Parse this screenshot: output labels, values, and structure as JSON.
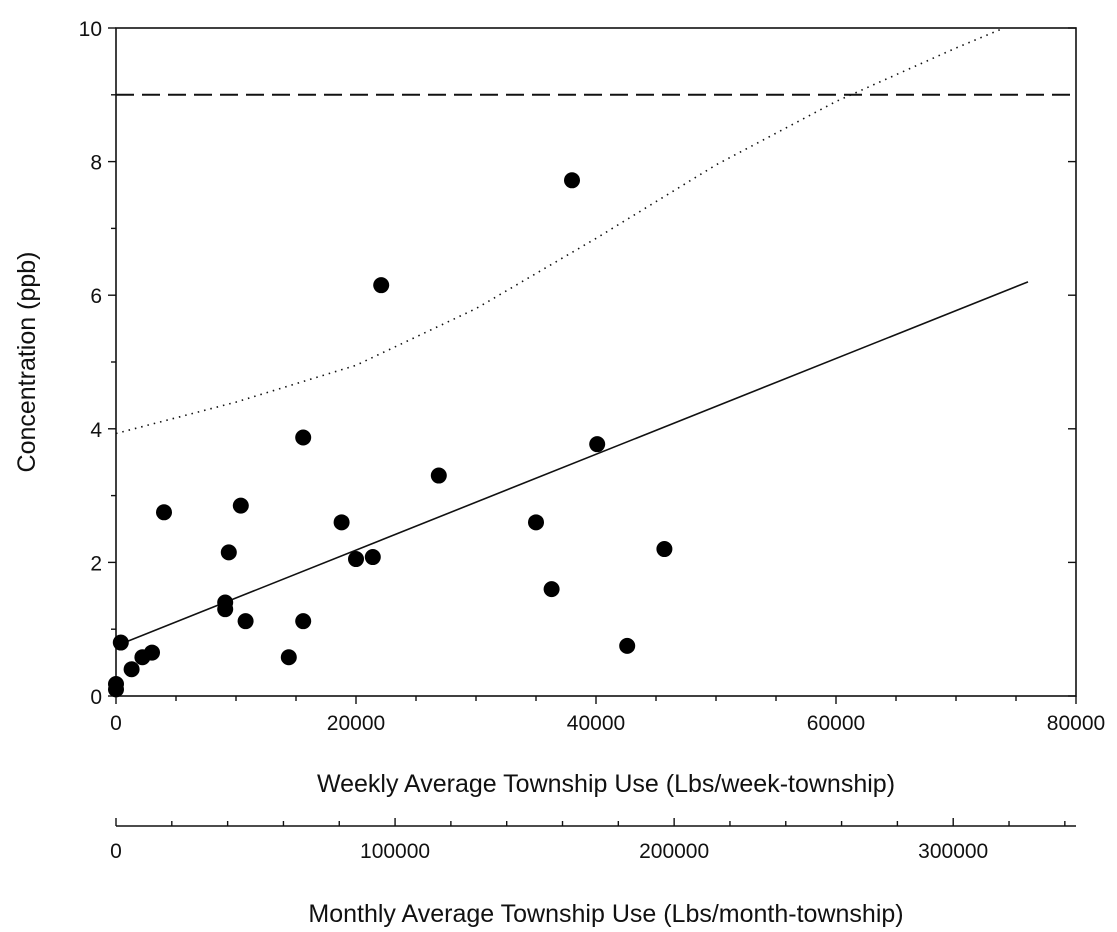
{
  "chart_data": {
    "type": "scatter",
    "title": "",
    "xlabel": "Weekly Average Township Use (Lbs/week-township)",
    "ylabel": "Concentration (ppb)",
    "xlim": [
      0,
      80000
    ],
    "ylim": [
      0,
      10
    ],
    "x_ticks": [
      0,
      20000,
      40000,
      60000,
      80000
    ],
    "x_tick_labels": [
      "0",
      "20000",
      "40000",
      "60000",
      "80000"
    ],
    "y_ticks": [
      0,
      2,
      4,
      6,
      8,
      10
    ],
    "y_tick_labels": [
      "0",
      "2",
      "4",
      "6",
      "8",
      "10"
    ],
    "secondary_x_axis": {
      "label": "Monthly Average Township Use (Lbs/month-township)",
      "lim": [
        0,
        344000
      ],
      "ticks": [
        0,
        100000,
        200000,
        300000
      ],
      "tick_labels": [
        "0",
        "100000",
        "200000",
        "300000"
      ]
    },
    "grid": false,
    "points": [
      {
        "x": 0,
        "y": 0.1
      },
      {
        "x": 0,
        "y": 0.18
      },
      {
        "x": 400,
        "y": 0.8
      },
      {
        "x": 1300,
        "y": 0.4
      },
      {
        "x": 2200,
        "y": 0.58
      },
      {
        "x": 3000,
        "y": 0.65
      },
      {
        "x": 4000,
        "y": 2.75
      },
      {
        "x": 9100,
        "y": 1.3
      },
      {
        "x": 9100,
        "y": 1.4
      },
      {
        "x": 9400,
        "y": 2.15
      },
      {
        "x": 10400,
        "y": 2.85
      },
      {
        "x": 10800,
        "y": 1.12
      },
      {
        "x": 14400,
        "y": 0.58
      },
      {
        "x": 15600,
        "y": 1.12
      },
      {
        "x": 15600,
        "y": 3.87
      },
      {
        "x": 18800,
        "y": 2.6
      },
      {
        "x": 20000,
        "y": 2.05
      },
      {
        "x": 21400,
        "y": 2.08
      },
      {
        "x": 22100,
        "y": 6.15
      },
      {
        "x": 26900,
        "y": 3.3
      },
      {
        "x": 35000,
        "y": 2.6
      },
      {
        "x": 36300,
        "y": 1.6
      },
      {
        "x": 38000,
        "y": 7.72
      },
      {
        "x": 40100,
        "y": 3.77
      },
      {
        "x": 42600,
        "y": 0.75
      },
      {
        "x": 45700,
        "y": 2.2
      }
    ],
    "regression_line": {
      "x": [
        0,
        76000
      ],
      "y": [
        0.75,
        6.2
      ]
    },
    "upper_bound_curve": {
      "x": [
        0,
        10000,
        20000,
        30000,
        40000,
        50000,
        60000,
        70000,
        74000
      ],
      "y": [
        3.93,
        4.4,
        4.95,
        5.8,
        6.85,
        7.95,
        8.9,
        9.7,
        10.0
      ]
    },
    "threshold": {
      "y": 9.0
    }
  }
}
